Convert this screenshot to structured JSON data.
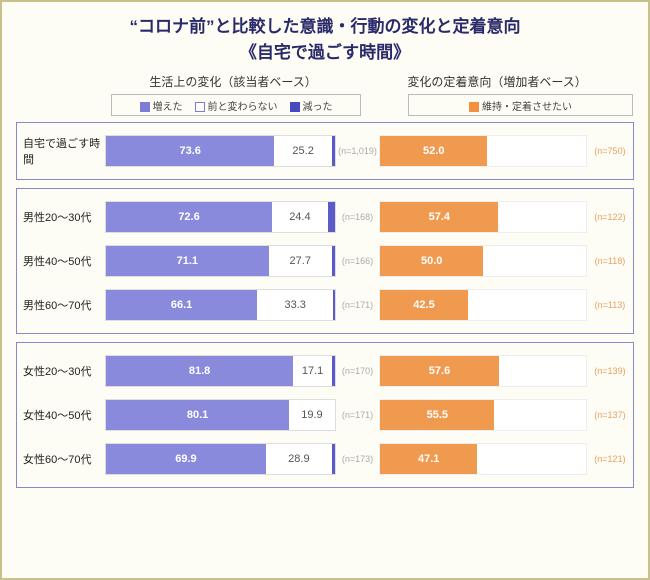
{
  "title_line1": "“コロナ前”と比較した意識・行動の変化と定着意向",
  "title_line2": "《自宅で過ごす時間》",
  "subtitle_left": "生活上の変化（該当者ベース）",
  "subtitle_right": "変化の定着意向（増加者ベース）",
  "legend": {
    "increased": "増えた",
    "same": "前と変わらない",
    "decreased": "減った",
    "keep": "維持・定着させたい"
  },
  "colors": {
    "increased": "#8a8add",
    "same_border": "#7d7dd6",
    "decreased": "#5a5ac8",
    "keep": "#f09a50",
    "frame": "#8888cc",
    "outer_border": "#c6c28a",
    "bg": "#fdfdf5",
    "title_color": "#2a2a6a",
    "n_left": "#aaaaaa",
    "n_right": "#e8a060"
  },
  "groups": [
    {
      "rows": [
        {
          "label": "自宅で過ごす時間",
          "incr": 73.6,
          "same": 25.2,
          "decr": 1.2,
          "n1": "(n=1,019)",
          "keep": 52.0,
          "n2": "(n=750)"
        }
      ]
    },
    {
      "rows": [
        {
          "label": "男性20～30代",
          "incr": 72.6,
          "same": 24.4,
          "decr": 3.0,
          "n1": "(n=168)",
          "keep": 57.4,
          "n2": "(n=122)"
        },
        {
          "label": "男性40～50代",
          "incr": 71.1,
          "same": 27.7,
          "decr": 1.2,
          "n1": "(n=166)",
          "keep": 50.0,
          "n2": "(n=118)"
        },
        {
          "label": "男性60～70代",
          "incr": 66.1,
          "same": 33.3,
          "decr": 0.6,
          "n1": "(n=171)",
          "keep": 42.5,
          "n2": "(n=113)"
        }
      ]
    },
    {
      "rows": [
        {
          "label": "女性20～30代",
          "incr": 81.8,
          "same": 17.1,
          "decr": 1.1,
          "n1": "(n=170)",
          "keep": 57.6,
          "n2": "(n=139)"
        },
        {
          "label": "女性40～50代",
          "incr": 80.1,
          "same": 19.9,
          "decr": 0.0,
          "n1": "(n=171)",
          "keep": 55.5,
          "n2": "(n=137)"
        },
        {
          "label": "女性60～70代",
          "incr": 69.9,
          "same": 28.9,
          "decr": 1.2,
          "n1": "(n=173)",
          "keep": 47.1,
          "n2": "(n=121)"
        }
      ]
    }
  ]
}
